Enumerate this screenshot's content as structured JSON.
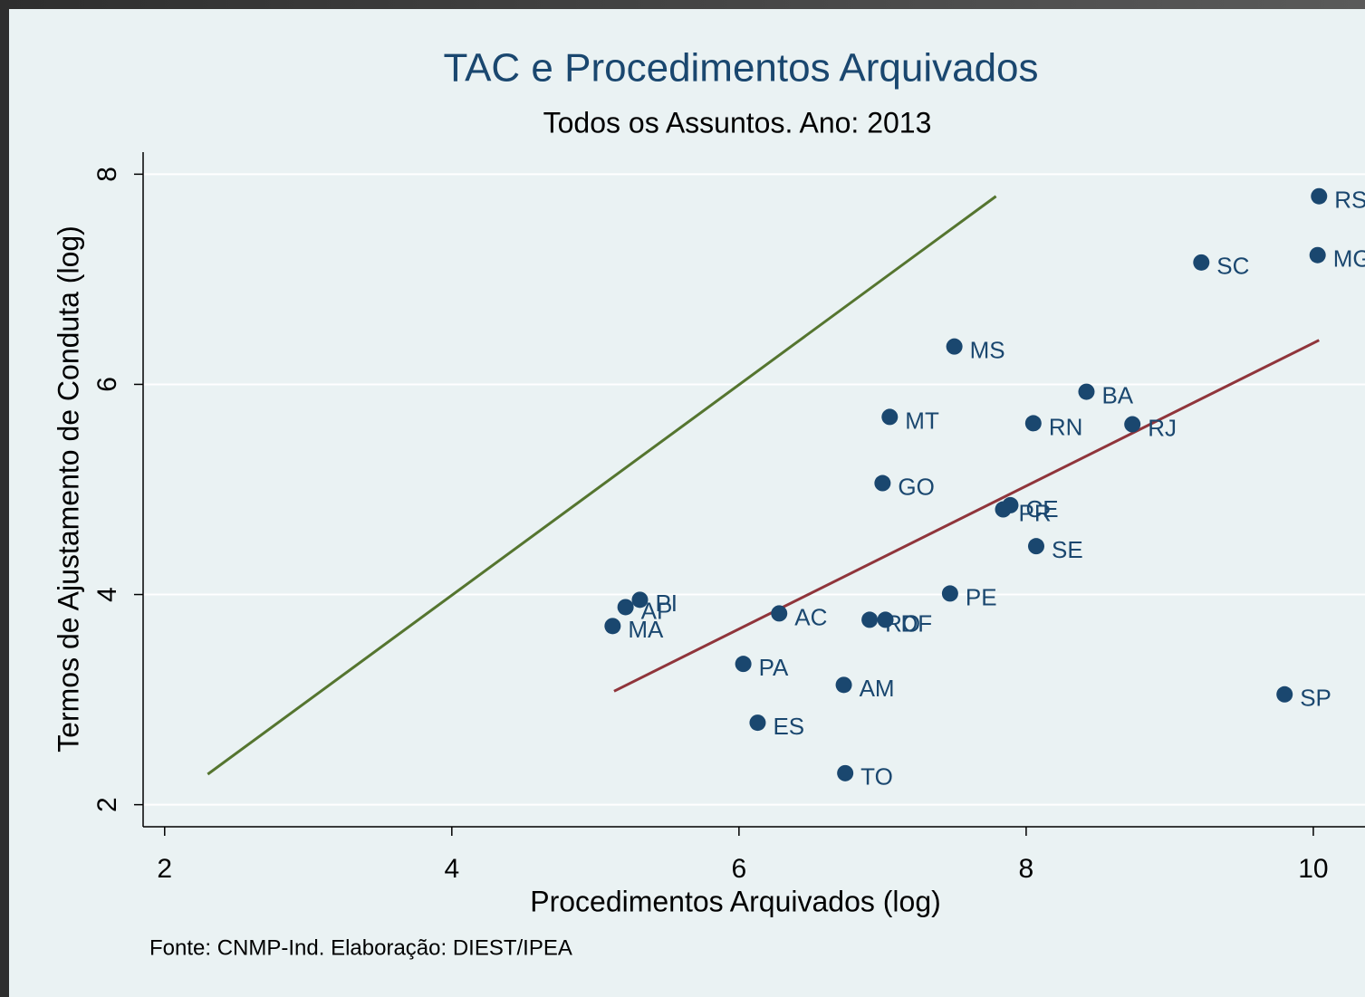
{
  "chart_data": {
    "type": "scatter",
    "title": "TAC e Procedimentos Arquivados",
    "subtitle": "Todos os Assuntos. Ano: 2013",
    "x_label": "Procedimentos Arquivados (log)",
    "y_label": "Termos de Ajustamento de Conduta (log)",
    "note": "Fonte: CNMP-Ind. Elaboração: DIEST/IPEA",
    "xlim": [
      1.85,
      10.36
    ],
    "ylim": [
      1.79,
      8.21
    ],
    "xticks": [
      2,
      4,
      6,
      8,
      10
    ],
    "yticks": [
      2,
      4,
      6,
      8
    ],
    "grid": true,
    "color": "#1a476f",
    "labels": [
      "RS",
      "MG",
      "SC",
      "MS",
      "BA",
      "MT",
      "RN",
      "RJ",
      "GO",
      "CE",
      "PR",
      "SE",
      "PE",
      "PI",
      "AP",
      "AC",
      "RO",
      "DF",
      "MA",
      "PA",
      "AM",
      "SP",
      "ES",
      "TO"
    ],
    "x": [
      10.04,
      10.03,
      9.22,
      7.5,
      8.42,
      7.05,
      8.05,
      8.74,
      7.0,
      7.89,
      7.84,
      8.07,
      7.47,
      5.31,
      5.21,
      6.28,
      6.91,
      7.02,
      5.12,
      6.03,
      6.73,
      9.8,
      6.13,
      6.74
    ],
    "y": [
      7.79,
      7.23,
      7.16,
      6.36,
      5.93,
      5.69,
      5.63,
      5.62,
      5.06,
      4.85,
      4.81,
      4.46,
      4.01,
      3.95,
      3.88,
      3.82,
      3.76,
      3.76,
      3.7,
      3.34,
      3.14,
      3.05,
      2.78,
      2.3
    ],
    "lines": [
      {
        "color": "#55752f",
        "x": [
          2.3,
          7.79
        ],
        "y": [
          2.29,
          7.79
        ]
      },
      {
        "color": "#90353b",
        "x": [
          5.13,
          10.04
        ],
        "y": [
          3.08,
          6.42
        ]
      }
    ]
  }
}
